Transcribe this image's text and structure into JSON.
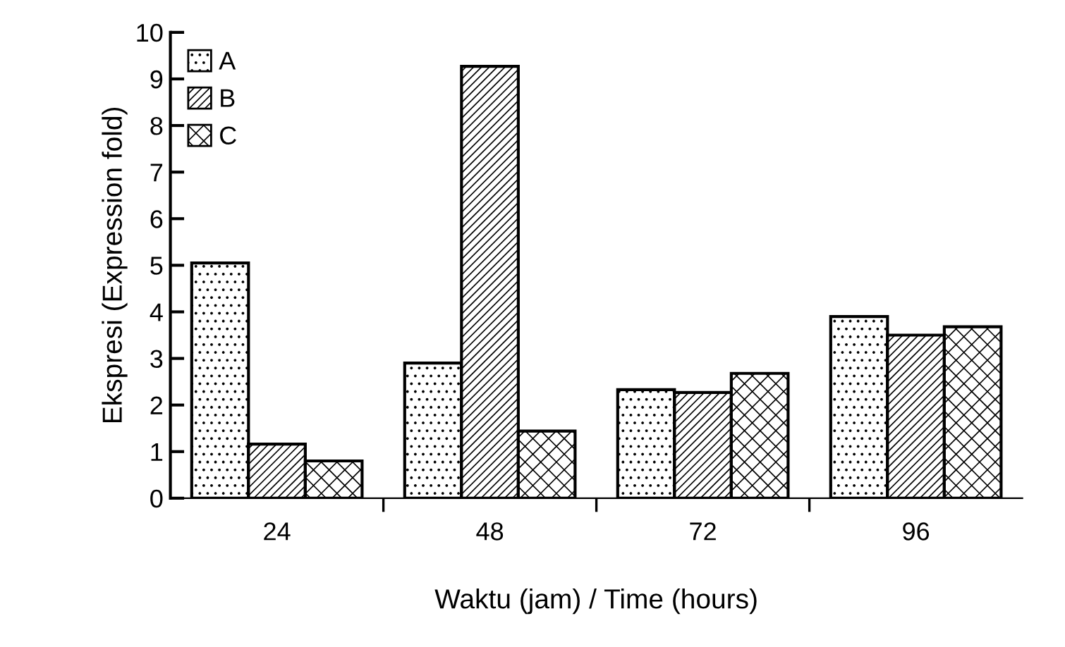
{
  "chart_data": {
    "type": "bar",
    "categories": [
      "24",
      "48",
      "72",
      "96"
    ],
    "series": [
      {
        "name": "A",
        "color": "#000000",
        "values": [
          5.05,
          2.9,
          2.33,
          3.9
        ]
      },
      {
        "name": "B",
        "color": "#000000",
        "values": [
          1.16,
          9.27,
          2.27,
          3.5
        ]
      },
      {
        "name": "C",
        "color": "#000000",
        "values": [
          0.8,
          1.44,
          2.68,
          3.68
        ]
      }
    ],
    "xlabel": "Waktu (jam) / Time (hours)",
    "ylabel": "Ekspresi (Expression fold)",
    "ylim": [
      0,
      10
    ],
    "yticks": [
      0,
      1,
      2,
      3,
      4,
      5,
      6,
      7,
      8,
      9,
      10
    ],
    "grid": false,
    "legend": "top left"
  }
}
